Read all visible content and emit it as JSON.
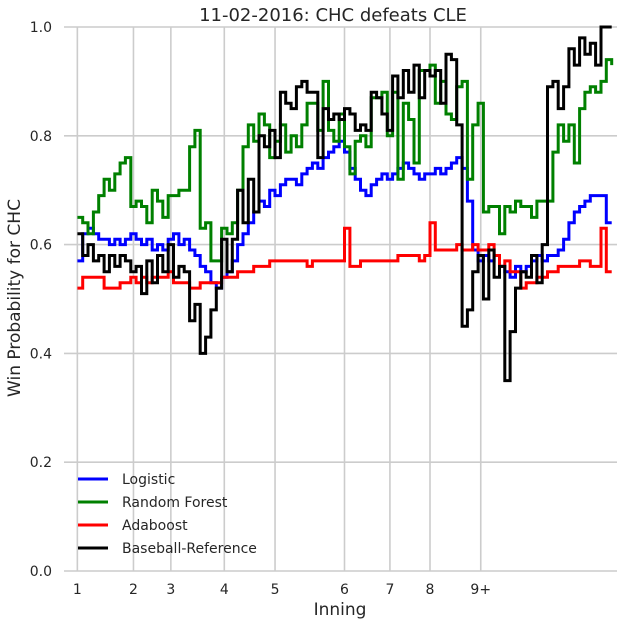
{
  "chart_data": {
    "type": "line",
    "step": "post",
    "title": "11-02-2016: CHC defeats CLE",
    "xlabel": "Inning",
    "ylabel": "Win Probability for CHC",
    "ylim": [
      0.0,
      1.0
    ],
    "yticks": [
      0.0,
      0.2,
      0.4,
      0.6,
      0.8,
      1.0
    ],
    "ytick_labels": [
      "0.0",
      "0.2",
      "0.4",
      "0.6",
      "0.8",
      "1.0"
    ],
    "xlim": [
      -2.5,
      101
    ],
    "xticks": [
      0,
      10.5,
      17.5,
      27.5,
      37,
      50,
      58.5,
      66,
      75.5
    ],
    "xtick_labels": [
      "1",
      "2",
      "3",
      "4",
      "5",
      "6",
      "7",
      "8",
      "9+"
    ],
    "grid": true,
    "legend_position": "lower-left",
    "series": [
      {
        "name": "Logistic",
        "color": "#0000ff",
        "x": [
          0,
          1,
          2,
          3,
          4,
          5,
          6,
          7,
          8,
          9,
          10,
          11,
          12,
          13,
          14,
          15,
          16,
          17,
          18,
          19,
          20,
          21,
          22,
          23,
          24,
          25,
          26,
          27,
          28,
          29,
          30,
          31,
          32,
          33,
          34,
          35,
          36,
          37,
          38,
          39,
          40,
          41,
          42,
          43,
          44,
          45,
          46,
          47,
          48,
          49,
          50,
          51,
          52,
          53,
          54,
          55,
          56,
          57,
          58,
          59,
          60,
          61,
          62,
          63,
          64,
          65,
          66,
          67,
          68,
          69,
          70,
          71,
          72,
          73,
          74,
          75,
          76,
          77,
          78,
          79,
          80,
          81,
          82,
          83,
          84,
          85,
          86,
          87,
          88,
          89,
          90,
          91,
          92,
          93,
          94,
          95,
          96,
          97,
          98,
          99,
          100
        ],
        "y": [
          0.57,
          0.62,
          0.63,
          0.62,
          0.61,
          0.61,
          0.6,
          0.61,
          0.6,
          0.61,
          0.62,
          0.61,
          0.6,
          0.61,
          0.59,
          0.6,
          0.59,
          0.61,
          0.62,
          0.6,
          0.61,
          0.59,
          0.58,
          0.56,
          0.55,
          0.53,
          0.52,
          0.54,
          0.55,
          0.57,
          0.6,
          0.62,
          0.64,
          0.66,
          0.68,
          0.67,
          0.7,
          0.69,
          0.71,
          0.72,
          0.72,
          0.71,
          0.73,
          0.74,
          0.75,
          0.74,
          0.76,
          0.77,
          0.78,
          0.79,
          0.77,
          0.74,
          0.72,
          0.7,
          0.69,
          0.71,
          0.72,
          0.73,
          0.72,
          0.73,
          0.74,
          0.75,
          0.74,
          0.73,
          0.72,
          0.73,
          0.73,
          0.74,
          0.73,
          0.74,
          0.75,
          0.76,
          0.74,
          0.68,
          0.59,
          0.57,
          0.58,
          0.57,
          0.58,
          0.56,
          0.55,
          0.54,
          0.56,
          0.55,
          0.56,
          0.57,
          0.58,
          0.57,
          0.58,
          0.58,
          0.59,
          0.61,
          0.64,
          0.66,
          0.67,
          0.68,
          0.69,
          0.69,
          0.69,
          0.64,
          0.64
        ]
      },
      {
        "name": "Random Forest",
        "color": "#008000",
        "x": [
          0,
          1,
          2,
          3,
          4,
          5,
          6,
          7,
          8,
          9,
          10,
          11,
          12,
          13,
          14,
          15,
          16,
          17,
          18,
          19,
          20,
          21,
          22,
          23,
          24,
          25,
          26,
          27,
          28,
          29,
          30,
          31,
          32,
          33,
          34,
          35,
          36,
          37,
          38,
          39,
          40,
          41,
          42,
          43,
          44,
          45,
          46,
          47,
          48,
          49,
          50,
          51,
          52,
          53,
          54,
          55,
          56,
          57,
          58,
          59,
          60,
          61,
          62,
          63,
          64,
          65,
          66,
          67,
          68,
          69,
          70,
          71,
          72,
          73,
          74,
          75,
          76,
          77,
          78,
          79,
          80,
          81,
          82,
          83,
          84,
          85,
          86,
          87,
          88,
          89,
          90,
          91,
          92,
          93,
          94,
          95,
          96,
          97,
          98,
          99,
          100
        ],
        "y": [
          0.65,
          0.64,
          0.62,
          0.66,
          0.69,
          0.72,
          0.7,
          0.73,
          0.75,
          0.76,
          0.67,
          0.68,
          0.67,
          0.64,
          0.7,
          0.68,
          0.65,
          0.69,
          0.69,
          0.7,
          0.7,
          0.78,
          0.81,
          0.63,
          0.64,
          0.57,
          0.57,
          0.63,
          0.62,
          0.64,
          0.7,
          0.78,
          0.82,
          0.79,
          0.84,
          0.82,
          0.76,
          0.79,
          0.82,
          0.77,
          0.8,
          0.78,
          0.82,
          0.86,
          0.86,
          0.81,
          0.9,
          0.81,
          0.79,
          0.84,
          0.78,
          0.73,
          0.79,
          0.8,
          0.78,
          0.87,
          0.87,
          0.88,
          0.8,
          0.88,
          0.72,
          0.86,
          0.83,
          0.75,
          0.92,
          0.92,
          0.93,
          0.86,
          0.9,
          0.84,
          0.83,
          0.89,
          0.9,
          0.72,
          0.82,
          0.86,
          0.66,
          0.67,
          0.67,
          0.62,
          0.67,
          0.66,
          0.68,
          0.67,
          0.67,
          0.65,
          0.68,
          0.68,
          0.68,
          0.77,
          0.82,
          0.79,
          0.82,
          0.75,
          0.85,
          0.88,
          0.89,
          0.88,
          0.9,
          0.94,
          0.93
        ]
      },
      {
        "name": "Adaboost",
        "color": "#ff0000",
        "x": [
          0,
          1,
          2,
          3,
          4,
          5,
          6,
          7,
          8,
          9,
          10,
          11,
          12,
          13,
          14,
          15,
          16,
          17,
          18,
          19,
          20,
          21,
          22,
          23,
          24,
          25,
          26,
          27,
          28,
          29,
          30,
          31,
          32,
          33,
          34,
          35,
          36,
          37,
          38,
          39,
          40,
          41,
          42,
          43,
          44,
          45,
          46,
          47,
          48,
          49,
          50,
          51,
          52,
          53,
          54,
          55,
          56,
          57,
          58,
          59,
          60,
          61,
          62,
          63,
          64,
          65,
          66,
          67,
          68,
          69,
          70,
          71,
          72,
          73,
          74,
          75,
          76,
          77,
          78,
          79,
          80,
          81,
          82,
          83,
          84,
          85,
          86,
          87,
          88,
          89,
          90,
          91,
          92,
          93,
          94,
          95,
          96,
          97,
          98,
          99,
          100
        ],
        "y": [
          0.52,
          0.54,
          0.54,
          0.54,
          0.54,
          0.52,
          0.52,
          0.52,
          0.53,
          0.53,
          0.54,
          0.53,
          0.54,
          0.53,
          0.54,
          0.54,
          0.54,
          0.55,
          0.53,
          0.53,
          0.53,
          0.52,
          0.52,
          0.53,
          0.53,
          0.53,
          0.53,
          0.54,
          0.54,
          0.54,
          0.55,
          0.55,
          0.55,
          0.56,
          0.56,
          0.56,
          0.57,
          0.57,
          0.57,
          0.57,
          0.57,
          0.57,
          0.57,
          0.56,
          0.57,
          0.57,
          0.57,
          0.57,
          0.57,
          0.57,
          0.63,
          0.56,
          0.56,
          0.57,
          0.57,
          0.57,
          0.57,
          0.57,
          0.57,
          0.57,
          0.58,
          0.58,
          0.58,
          0.58,
          0.57,
          0.58,
          0.64,
          0.59,
          0.59,
          0.59,
          0.59,
          0.6,
          0.59,
          0.59,
          0.6,
          0.59,
          0.59,
          0.6,
          0.58,
          0.56,
          0.57,
          0.55,
          0.55,
          0.52,
          0.53,
          0.53,
          0.54,
          0.54,
          0.55,
          0.55,
          0.56,
          0.56,
          0.56,
          0.56,
          0.57,
          0.57,
          0.56,
          0.56,
          0.63,
          0.55,
          0.55
        ]
      },
      {
        "name": "Baseball-Reference",
        "color": "#000000",
        "x": [
          0,
          1,
          2,
          3,
          4,
          5,
          6,
          7,
          8,
          9,
          10,
          11,
          12,
          13,
          14,
          15,
          16,
          17,
          18,
          19,
          20,
          21,
          22,
          23,
          24,
          25,
          26,
          27,
          28,
          29,
          30,
          31,
          32,
          33,
          34,
          35,
          36,
          37,
          38,
          39,
          40,
          41,
          42,
          43,
          44,
          45,
          46,
          47,
          48,
          49,
          50,
          51,
          52,
          53,
          54,
          55,
          56,
          57,
          58,
          59,
          60,
          61,
          62,
          63,
          64,
          65,
          66,
          67,
          68,
          69,
          70,
          71,
          72,
          73,
          74,
          75,
          76,
          77,
          78,
          79,
          80,
          81,
          82,
          83,
          84,
          85,
          86,
          87,
          88,
          89,
          90,
          91,
          92,
          93,
          94,
          95,
          96,
          97,
          98,
          99,
          100
        ],
        "y": [
          0.62,
          0.58,
          0.6,
          0.57,
          0.58,
          0.55,
          0.58,
          0.56,
          0.58,
          0.57,
          0.55,
          0.56,
          0.51,
          0.57,
          0.53,
          0.58,
          0.55,
          0.6,
          0.54,
          0.56,
          0.55,
          0.46,
          0.49,
          0.4,
          0.43,
          0.48,
          0.52,
          0.61,
          0.55,
          0.61,
          0.7,
          0.64,
          0.72,
          0.66,
          0.8,
          0.78,
          0.81,
          0.76,
          0.88,
          0.86,
          0.85,
          0.89,
          0.9,
          0.88,
          0.88,
          0.76,
          0.85,
          0.83,
          0.84,
          0.83,
          0.85,
          0.84,
          0.81,
          0.82,
          0.81,
          0.88,
          0.87,
          0.84,
          0.81,
          0.91,
          0.87,
          0.92,
          0.88,
          0.93,
          0.87,
          0.92,
          0.91,
          0.92,
          0.86,
          0.95,
          0.94,
          0.82,
          0.45,
          0.48,
          0.55,
          0.58,
          0.5,
          0.59,
          0.54,
          0.56,
          0.35,
          0.44,
          0.52,
          0.55,
          0.54,
          0.58,
          0.53,
          0.6,
          0.89,
          0.9,
          0.85,
          0.89,
          0.96,
          0.93,
          0.98,
          0.95,
          0.97,
          0.93,
          1.0,
          1.0,
          1.0
        ]
      }
    ]
  }
}
